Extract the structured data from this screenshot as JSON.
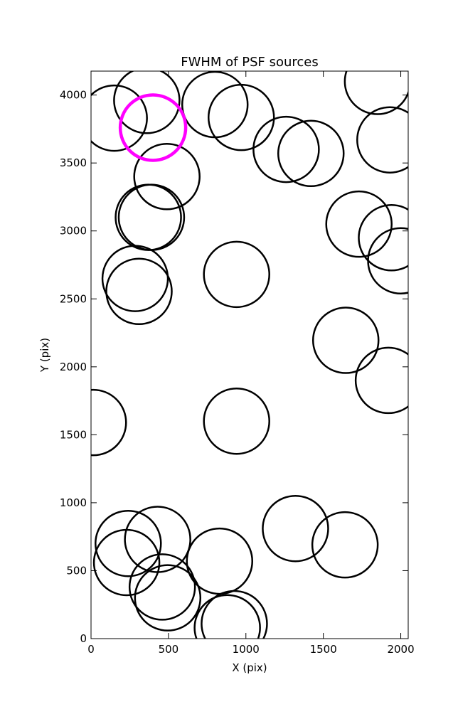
{
  "chart_data": {
    "type": "scatter",
    "title": "FWHM of PSF sources",
    "xlabel": "X (pix)",
    "ylabel": "Y (pix)",
    "xlim": [
      0,
      2048
    ],
    "ylim": [
      0,
      4176
    ],
    "xticks": [
      0,
      500,
      1000,
      1500,
      2000
    ],
    "yticks": [
      0,
      500,
      1000,
      1500,
      2000,
      2500,
      3000,
      3500,
      4000
    ],
    "series": [
      {
        "color": "#000000",
        "x": [
          150,
          360,
          800,
          970,
          1260,
          1420,
          1850,
          1930,
          490,
          370,
          390,
          1730,
          1940,
          2000,
          285,
          310,
          940,
          1645,
          1920,
          15,
          940,
          1320,
          1640,
          240,
          430,
          230,
          460,
          495,
          830,
          925,
          880
        ],
        "y": [
          3830,
          3960,
          3930,
          3835,
          3600,
          3570,
          4100,
          3670,
          3400,
          3100,
          3100,
          3050,
          2950,
          2780,
          2650,
          2555,
          2680,
          2195,
          1900,
          1590,
          1600,
          810,
          690,
          700,
          730,
          560,
          380,
          300,
          570,
          110,
          80
        ]
      },
      {
        "color": "#ff00ff",
        "x": [
          400
        ],
        "y": [
          3760
        ]
      }
    ]
  }
}
